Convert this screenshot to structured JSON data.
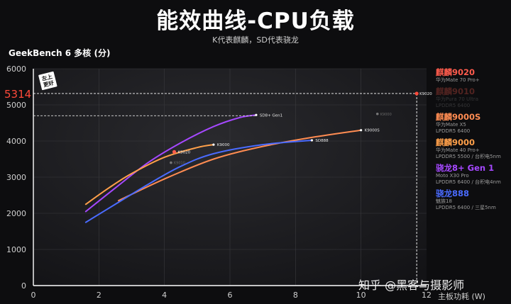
{
  "title": "能效曲线-CPU负载",
  "subtitle": "K代表麒麟，SD代表骁龙",
  "watermark": "知乎 @黑客与摄影师",
  "colors": {
    "bg": "#0d0d0f",
    "k9020": "#ff5c4d",
    "k9000s": "#ff8c52",
    "k9000": "#ffa04a",
    "sd8plus": "#a548ff",
    "sd888": "#4a6bff",
    "accent": "#ff4a3a"
  },
  "chart_data": {
    "type": "line",
    "title": "能效曲线-CPU负载",
    "ylabel": "GeekBench 6 多核 (分)",
    "xlabel": "主板功耗 (W)",
    "xlim": [
      0,
      12
    ],
    "ylim": [
      0,
      6000
    ],
    "xticks": [
      0,
      2,
      4,
      6,
      8,
      10,
      12
    ],
    "yticks": [
      0,
      1000,
      2000,
      3000,
      4000,
      5000,
      6000
    ],
    "highlight": {
      "value": 5314,
      "label": "5314",
      "point_label": "K9020",
      "x": 11.7
    },
    "sd8_ref_y": 4700,
    "badge": "左上\n更好",
    "series": [
      {
        "name": "SD8+ Gen1",
        "key": "sd8plus",
        "color": "#a548ff",
        "points": [
          [
            1.6,
            2050
          ],
          [
            2.5,
            2700
          ],
          [
            3.5,
            3400
          ],
          [
            4.5,
            3950
          ],
          [
            5.5,
            4400
          ],
          [
            6.3,
            4650
          ],
          [
            6.8,
            4720
          ]
        ],
        "end_label": "SD8+ Gen1"
      },
      {
        "name": "K9000S",
        "key": "k9000s",
        "color": "#ff8c52",
        "points": [
          [
            2.6,
            2350
          ],
          [
            4,
            2950
          ],
          [
            5.5,
            3500
          ],
          [
            7,
            3850
          ],
          [
            8.5,
            4100
          ],
          [
            10,
            4300
          ]
        ],
        "end_label": "K9000S"
      },
      {
        "name": "SD888",
        "key": "sd888",
        "color": "#4a6bff",
        "points": [
          [
            1.6,
            1750
          ],
          [
            2.5,
            2250
          ],
          [
            3.5,
            2800
          ],
          [
            4.5,
            3300
          ],
          [
            5.5,
            3650
          ],
          [
            7,
            3900
          ],
          [
            8.5,
            4020
          ]
        ],
        "end_label": "SD888"
      },
      {
        "name": "K9000",
        "key": "k9000",
        "color": "#ffa04a",
        "points": [
          [
            1.6,
            2250
          ],
          [
            2.3,
            2700
          ],
          [
            3,
            3100
          ],
          [
            4,
            3550
          ],
          [
            5,
            3820
          ],
          [
            5.5,
            3900
          ]
        ],
        "end_label": "K9000"
      },
      {
        "name": "K9020",
        "key": "k9020",
        "color": "#ff5c4d",
        "points": [
          [
            4.3,
            3700
          ]
        ],
        "end_label": "K9020"
      }
    ],
    "ghost_points": [
      {
        "label": "K9000",
        "x": 10.5,
        "y": 4750
      },
      {
        "label": "K9010",
        "x": 4.2,
        "y": 3400
      }
    ]
  },
  "legend": [
    {
      "name": "麒麟9020",
      "color": "#ff5c4d",
      "lines": [
        "华为Mate 70 Pro+"
      ],
      "dim": false
    },
    {
      "name": "麒麟9010",
      "color": "#ff5c4d",
      "lines": [
        "华为Pura 70 Ultra",
        "LPDDR5 6400"
      ],
      "dim": true
    },
    {
      "name": "麒麟9000S",
      "color": "#ff8c52",
      "lines": [
        "华为Mate X5",
        "LPDDR5 6400"
      ],
      "dim": false
    },
    {
      "name": "麒麟9000",
      "color": "#ffa04a",
      "lines": [
        "华为Mate 40 Pro+",
        "LPDDR5 5500 / 台积电5nm"
      ],
      "dim": false
    },
    {
      "name": "骁龙8+ Gen 1",
      "color": "#a548ff",
      "lines": [
        "Moto X30 Pro",
        "LPDDR5 6400 / 台积电4nm"
      ],
      "dim": false
    },
    {
      "name": "骁龙888",
      "color": "#4a6bff",
      "lines": [
        "魅族18",
        "LPDDR5 6400 / 三星5nm"
      ],
      "dim": false
    }
  ]
}
